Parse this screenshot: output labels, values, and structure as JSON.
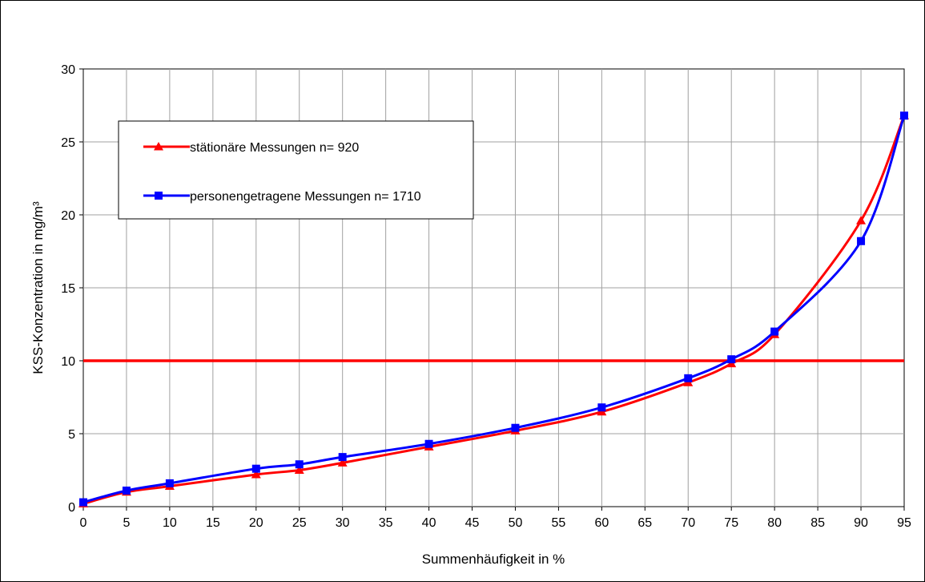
{
  "chart_data": {
    "type": "line",
    "xlabel": "Summenhäufigkeit in %",
    "ylabel": "KSS-Konzentration in mg/m³",
    "xlim": [
      0,
      95
    ],
    "ylim": [
      0,
      30
    ],
    "x_ticks": [
      "0",
      "5",
      "10",
      "15",
      "20",
      "25",
      "30",
      "35",
      "40",
      "45",
      "50",
      "55",
      "60",
      "65",
      "70",
      "75",
      "80",
      "85",
      "90",
      "95"
    ],
    "y_ticks": [
      "0",
      "5",
      "10",
      "15",
      "20",
      "25",
      "30"
    ],
    "grid": true,
    "legend_position": "upper-left",
    "reference_line": {
      "y": 10,
      "color": "#ff0000"
    },
    "series": [
      {
        "name": "stätionäre Messungen n= 920",
        "color": "#ff0000",
        "marker": "triangle",
        "x": [
          0,
          5,
          10,
          20,
          25,
          30,
          40,
          50,
          60,
          70,
          75,
          80,
          90,
          95
        ],
        "y": [
          0.2,
          1.0,
          1.4,
          2.2,
          2.5,
          3.0,
          4.1,
          5.2,
          6.5,
          8.5,
          9.8,
          11.8,
          19.6,
          26.8
        ]
      },
      {
        "name": "personengetragene Messungen n= 1710",
        "color": "#0000ff",
        "marker": "square",
        "x": [
          0,
          5,
          10,
          20,
          25,
          30,
          40,
          50,
          60,
          70,
          75,
          80,
          90,
          95
        ],
        "y": [
          0.3,
          1.1,
          1.6,
          2.6,
          2.9,
          3.4,
          4.3,
          5.4,
          6.8,
          8.8,
          10.1,
          12.0,
          18.2,
          26.8
        ]
      }
    ]
  }
}
